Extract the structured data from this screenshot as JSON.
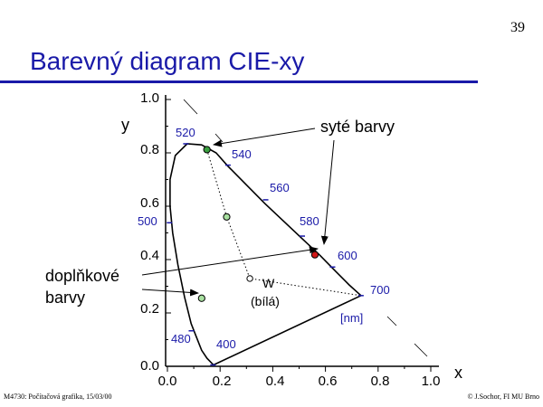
{
  "page": {
    "number": "39",
    "title": "Barevný diagram CIE-xy",
    "footer_left": "M4730: Počítačová grafika, 15/03/00",
    "footer_right": "© J.Sochor, FI MU Brno"
  },
  "colors": {
    "title_blue": "#1a1aa8",
    "label_blue": "#1a1aa8",
    "green_point": "#3aa040",
    "red_point": "#d01818",
    "pale_green_point": "#a8e0a0"
  },
  "chart_data": {
    "type": "scatter",
    "xlabel": "x",
    "ylabel": "y",
    "xlim": [
      0.0,
      1.0
    ],
    "ylim": [
      0.0,
      1.0
    ],
    "x_ticks": [
      "0.0",
      "0.2",
      "0.4",
      "0.6",
      "0.8",
      "1.0"
    ],
    "y_ticks": [
      "0.0",
      "0.2",
      "0.4",
      "0.6",
      "0.8",
      "1.0"
    ],
    "locus": [
      {
        "x": 0.175,
        "y": 0.005
      },
      {
        "x": 0.15,
        "y": 0.03
      },
      {
        "x": 0.13,
        "y": 0.06
      },
      {
        "x": 0.11,
        "y": 0.11
      },
      {
        "x": 0.09,
        "y": 0.16
      },
      {
        "x": 0.065,
        "y": 0.26
      },
      {
        "x": 0.04,
        "y": 0.38
      },
      {
        "x": 0.02,
        "y": 0.5
      },
      {
        "x": 0.01,
        "y": 0.6
      },
      {
        "x": 0.01,
        "y": 0.7
      },
      {
        "x": 0.03,
        "y": 0.79
      },
      {
        "x": 0.075,
        "y": 0.834
      },
      {
        "x": 0.13,
        "y": 0.83
      },
      {
        "x": 0.185,
        "y": 0.8
      },
      {
        "x": 0.23,
        "y": 0.75
      },
      {
        "x": 0.3,
        "y": 0.68
      },
      {
        "x": 0.37,
        "y": 0.61
      },
      {
        "x": 0.44,
        "y": 0.545
      },
      {
        "x": 0.51,
        "y": 0.48
      },
      {
        "x": 0.58,
        "y": 0.415
      },
      {
        "x": 0.64,
        "y": 0.355
      },
      {
        "x": 0.69,
        "y": 0.305
      },
      {
        "x": 0.735,
        "y": 0.265
      }
    ],
    "purple_line": [
      {
        "x": 0.735,
        "y": 0.265
      },
      {
        "x": 0.175,
        "y": 0.005
      }
    ],
    "wavelength_labels": [
      {
        "label": "520",
        "x": 0.07,
        "y": 0.834
      },
      {
        "label": "540",
        "x": 0.23,
        "y": 0.754
      },
      {
        "label": "560",
        "x": 0.373,
        "y": 0.624
      },
      {
        "label": "580",
        "x": 0.512,
        "y": 0.488
      },
      {
        "label": "600",
        "x": 0.627,
        "y": 0.372
      },
      {
        "label": "700",
        "x": 0.735,
        "y": 0.265
      },
      {
        "label": "500",
        "x": 0.008,
        "y": 0.538
      },
      {
        "label": "480",
        "x": 0.091,
        "y": 0.133
      },
      {
        "label": "400",
        "x": 0.173,
        "y": 0.005
      }
    ],
    "wavelength_unit": "[nm]",
    "points": [
      {
        "id": "saturated",
        "x": 0.15,
        "y": 0.812,
        "color": "#3aa040"
      },
      {
        "id": "mid",
        "x": 0.225,
        "y": 0.56,
        "color": "#a8e0a0"
      },
      {
        "id": "white",
        "x": 0.313,
        "y": 0.329,
        "color": "#ffffff"
      },
      {
        "id": "red",
        "x": 0.56,
        "y": 0.418,
        "color": "#d01818"
      },
      {
        "id": "complement",
        "x": 0.13,
        "y": 0.255,
        "color": "#a8e0a0"
      }
    ],
    "white_point_label": "W",
    "white_point_sublabel": "(bílá)",
    "annotations": {
      "saturated": "syté barvy",
      "complementary_line1": "doplňkové",
      "complementary_line2": "barvy"
    }
  }
}
